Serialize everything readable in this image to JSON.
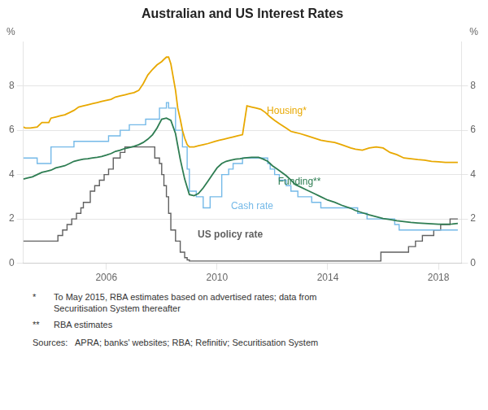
{
  "chart_data": {
    "type": "line",
    "title": "Australian and US Interest Rates",
    "ylabel": "%",
    "y2label": "%",
    "xlim": [
      2003.0,
      2018.83
    ],
    "xticks": [
      2006,
      2010,
      2014,
      2018
    ],
    "ylim": [
      0,
      10
    ],
    "yticks": [
      0,
      2,
      4,
      6,
      8
    ],
    "y2lim": [
      0,
      10
    ],
    "y2ticks": [
      0,
      2,
      4,
      6,
      8
    ],
    "grid": true,
    "series": [
      {
        "name": "US policy rate",
        "color": "#606060",
        "type": "step",
        "x": [
          2003.0,
          2003.5,
          2003.67,
          2004.0,
          2004.25,
          2004.42,
          2004.58,
          2004.75,
          2004.92,
          2005.08,
          2005.17,
          2005.42,
          2005.58,
          2005.75,
          2005.92,
          2006.08,
          2006.25,
          2006.5,
          2006.67,
          2007.0,
          2007.75,
          2007.92,
          2008.0,
          2008.08,
          2008.17,
          2008.25,
          2008.33,
          2008.5,
          2008.67,
          2008.83,
          2008.92,
          2009.0,
          2009.08,
          2015.08,
          2015.92,
          2016.92,
          2017.17,
          2017.42,
          2017.83,
          2018.08,
          2018.42,
          2018.7
        ],
        "values": [
          1.0,
          1.0,
          1.0,
          1.0,
          1.25,
          1.5,
          1.75,
          2.0,
          2.25,
          2.5,
          2.75,
          3.25,
          3.5,
          3.75,
          4.0,
          4.25,
          4.75,
          5.0,
          5.25,
          5.25,
          4.75,
          4.5,
          4.0,
          3.5,
          3.0,
          2.25,
          1.5,
          1.0,
          0.5,
          0.25,
          0.15,
          0.1,
          0.1,
          0.1,
          0.5,
          0.75,
          1.0,
          1.25,
          1.5,
          1.75,
          2.0,
          2.0
        ]
      },
      {
        "name": "Cash rate",
        "color": "#74b9e8",
        "type": "step",
        "x": [
          2003.0,
          2003.42,
          2003.5,
          2004.0,
          2004.67,
          2004.83,
          2005.17,
          2005.42,
          2006.08,
          2006.5,
          2006.83,
          2007.08,
          2007.42,
          2007.92,
          2008.17,
          2008.25,
          2008.5,
          2008.75,
          2008.92,
          2009.0,
          2009.25,
          2009.5,
          2009.75,
          2010.17,
          2010.42,
          2010.58,
          2010.75,
          2010.92,
          2011.0,
          2011.83,
          2011.92,
          2012.08,
          2012.25,
          2012.5,
          2012.67,
          2012.92,
          2013.08,
          2013.42,
          2013.75,
          2014.0,
          2015.08,
          2015.42,
          2016.42,
          2016.58,
          2017.0,
          2018.0,
          2018.7
        ],
        "values": [
          4.75,
          4.75,
          4.5,
          5.25,
          5.25,
          5.5,
          5.5,
          5.5,
          5.75,
          6.0,
          6.25,
          6.25,
          6.5,
          7.0,
          7.25,
          7.0,
          6.0,
          5.25,
          4.25,
          3.25,
          3.0,
          2.5,
          3.0,
          4.0,
          4.25,
          4.5,
          4.5,
          4.75,
          4.75,
          4.5,
          4.25,
          4.0,
          3.75,
          3.5,
          3.25,
          3.0,
          3.0,
          2.75,
          2.5,
          2.5,
          2.25,
          2.0,
          1.75,
          1.5,
          1.5,
          1.5,
          1.5
        ]
      },
      {
        "name": "Housing*",
        "color": "#e8a800",
        "type": "line",
        "x": [
          2003.0,
          2003.08,
          2003.25,
          2003.5,
          2003.67,
          2003.92,
          2004.0,
          2004.17,
          2004.33,
          2004.5,
          2004.67,
          2004.83,
          2005.0,
          2005.17,
          2005.33,
          2005.5,
          2005.67,
          2005.83,
          2006.0,
          2006.17,
          2006.33,
          2006.5,
          2006.67,
          2006.83,
          2007.0,
          2007.17,
          2007.33,
          2007.5,
          2007.67,
          2007.83,
          2008.0,
          2008.08,
          2008.17,
          2008.25,
          2008.33,
          2008.5,
          2008.58,
          2008.67,
          2008.75,
          2008.83,
          2008.92,
          2009.0,
          2009.08,
          2009.17,
          2009.33,
          2009.5,
          2009.67,
          2009.92,
          2010.08,
          2010.25,
          2010.42,
          2010.58,
          2010.75,
          2010.92,
          2011.08,
          2011.25,
          2011.42,
          2011.58,
          2011.75,
          2011.92,
          2012.08,
          2012.25,
          2012.5,
          2012.67,
          2012.83,
          2013.0,
          2013.25,
          2013.5,
          2013.75,
          2014.0,
          2014.25,
          2014.5,
          2014.83,
          2015.0,
          2015.25,
          2015.5,
          2015.75,
          2016.0,
          2016.25,
          2016.5,
          2016.75,
          2017.0,
          2017.25,
          2017.5,
          2017.75,
          2018.0,
          2018.25,
          2018.5,
          2018.7
        ],
        "values": [
          6.15,
          6.1,
          6.1,
          6.15,
          6.35,
          6.35,
          6.55,
          6.6,
          6.65,
          6.7,
          6.8,
          6.9,
          7.05,
          7.1,
          7.15,
          7.2,
          7.25,
          7.3,
          7.35,
          7.4,
          7.5,
          7.55,
          7.6,
          7.65,
          7.7,
          7.8,
          8.1,
          8.5,
          8.75,
          8.95,
          9.1,
          9.2,
          9.3,
          9.3,
          9.0,
          7.8,
          7.0,
          6.5,
          6.0,
          5.65,
          5.35,
          5.25,
          5.25,
          5.25,
          5.3,
          5.35,
          5.4,
          5.5,
          5.55,
          5.6,
          5.65,
          5.7,
          5.75,
          5.8,
          7.1,
          7.05,
          7.0,
          6.95,
          6.8,
          6.6,
          6.45,
          6.3,
          6.1,
          5.95,
          5.9,
          5.85,
          5.75,
          5.65,
          5.55,
          5.5,
          5.45,
          5.35,
          5.2,
          5.15,
          5.1,
          5.2,
          5.25,
          5.2,
          5.0,
          4.9,
          4.75,
          4.72,
          4.68,
          4.65,
          4.6,
          4.58,
          4.55,
          4.55,
          4.55
        ]
      },
      {
        "name": "Funding**",
        "color": "#2e7d52",
        "type": "line",
        "x": [
          2003.0,
          2003.17,
          2003.33,
          2003.5,
          2003.67,
          2003.83,
          2004.0,
          2004.17,
          2004.33,
          2004.5,
          2004.67,
          2004.83,
          2005.0,
          2005.17,
          2005.33,
          2005.5,
          2005.67,
          2005.83,
          2006.0,
          2006.17,
          2006.33,
          2006.5,
          2006.67,
          2006.83,
          2007.0,
          2007.17,
          2007.33,
          2007.5,
          2007.67,
          2007.83,
          2008.0,
          2008.17,
          2008.33,
          2008.5,
          2008.67,
          2008.83,
          2009.0,
          2009.17,
          2009.33,
          2009.5,
          2009.67,
          2009.83,
          2010.0,
          2010.17,
          2010.33,
          2010.5,
          2010.67,
          2010.83,
          2011.0,
          2011.25,
          2011.5,
          2011.67,
          2011.83,
          2012.0,
          2012.17,
          2012.5,
          2012.67,
          2012.83,
          2013.0,
          2013.25,
          2013.5,
          2013.75,
          2014.0,
          2014.25,
          2014.5,
          2014.83,
          2015.0,
          2015.25,
          2015.5,
          2015.75,
          2016.0,
          2016.25,
          2016.5,
          2016.75,
          2017.0,
          2017.25,
          2017.5,
          2017.75,
          2018.0,
          2018.25,
          2018.5,
          2018.7
        ],
        "values": [
          3.8,
          3.85,
          3.9,
          4.0,
          4.1,
          4.15,
          4.2,
          4.3,
          4.35,
          4.4,
          4.5,
          4.6,
          4.65,
          4.7,
          4.72,
          4.75,
          4.78,
          4.82,
          4.88,
          4.95,
          5.05,
          5.1,
          5.18,
          5.22,
          5.28,
          5.35,
          5.45,
          5.6,
          5.8,
          6.1,
          6.5,
          6.55,
          6.45,
          5.85,
          4.7,
          3.8,
          3.1,
          3.05,
          3.15,
          3.4,
          3.7,
          4.0,
          4.3,
          4.5,
          4.6,
          4.65,
          4.7,
          4.72,
          4.75,
          4.78,
          4.78,
          4.7,
          4.6,
          4.4,
          4.25,
          3.95,
          3.75,
          3.55,
          3.45,
          3.3,
          3.15,
          3.0,
          2.85,
          2.75,
          2.62,
          2.48,
          2.38,
          2.28,
          2.18,
          2.1,
          2.02,
          1.97,
          1.92,
          1.88,
          1.84,
          1.82,
          1.8,
          1.78,
          1.76,
          1.76,
          1.77,
          1.8
        ]
      }
    ],
    "footnotes": [
      {
        "mark": "*",
        "text": "To May 2015, RBA estimates based on advertised rates; data from\nSecuritisation System thereafter"
      },
      {
        "mark": "**",
        "text": "RBA estimates"
      }
    ],
    "sources": "Sources:   APRA; banks' websites; RBA; Refinitiv; Securitisation System"
  }
}
